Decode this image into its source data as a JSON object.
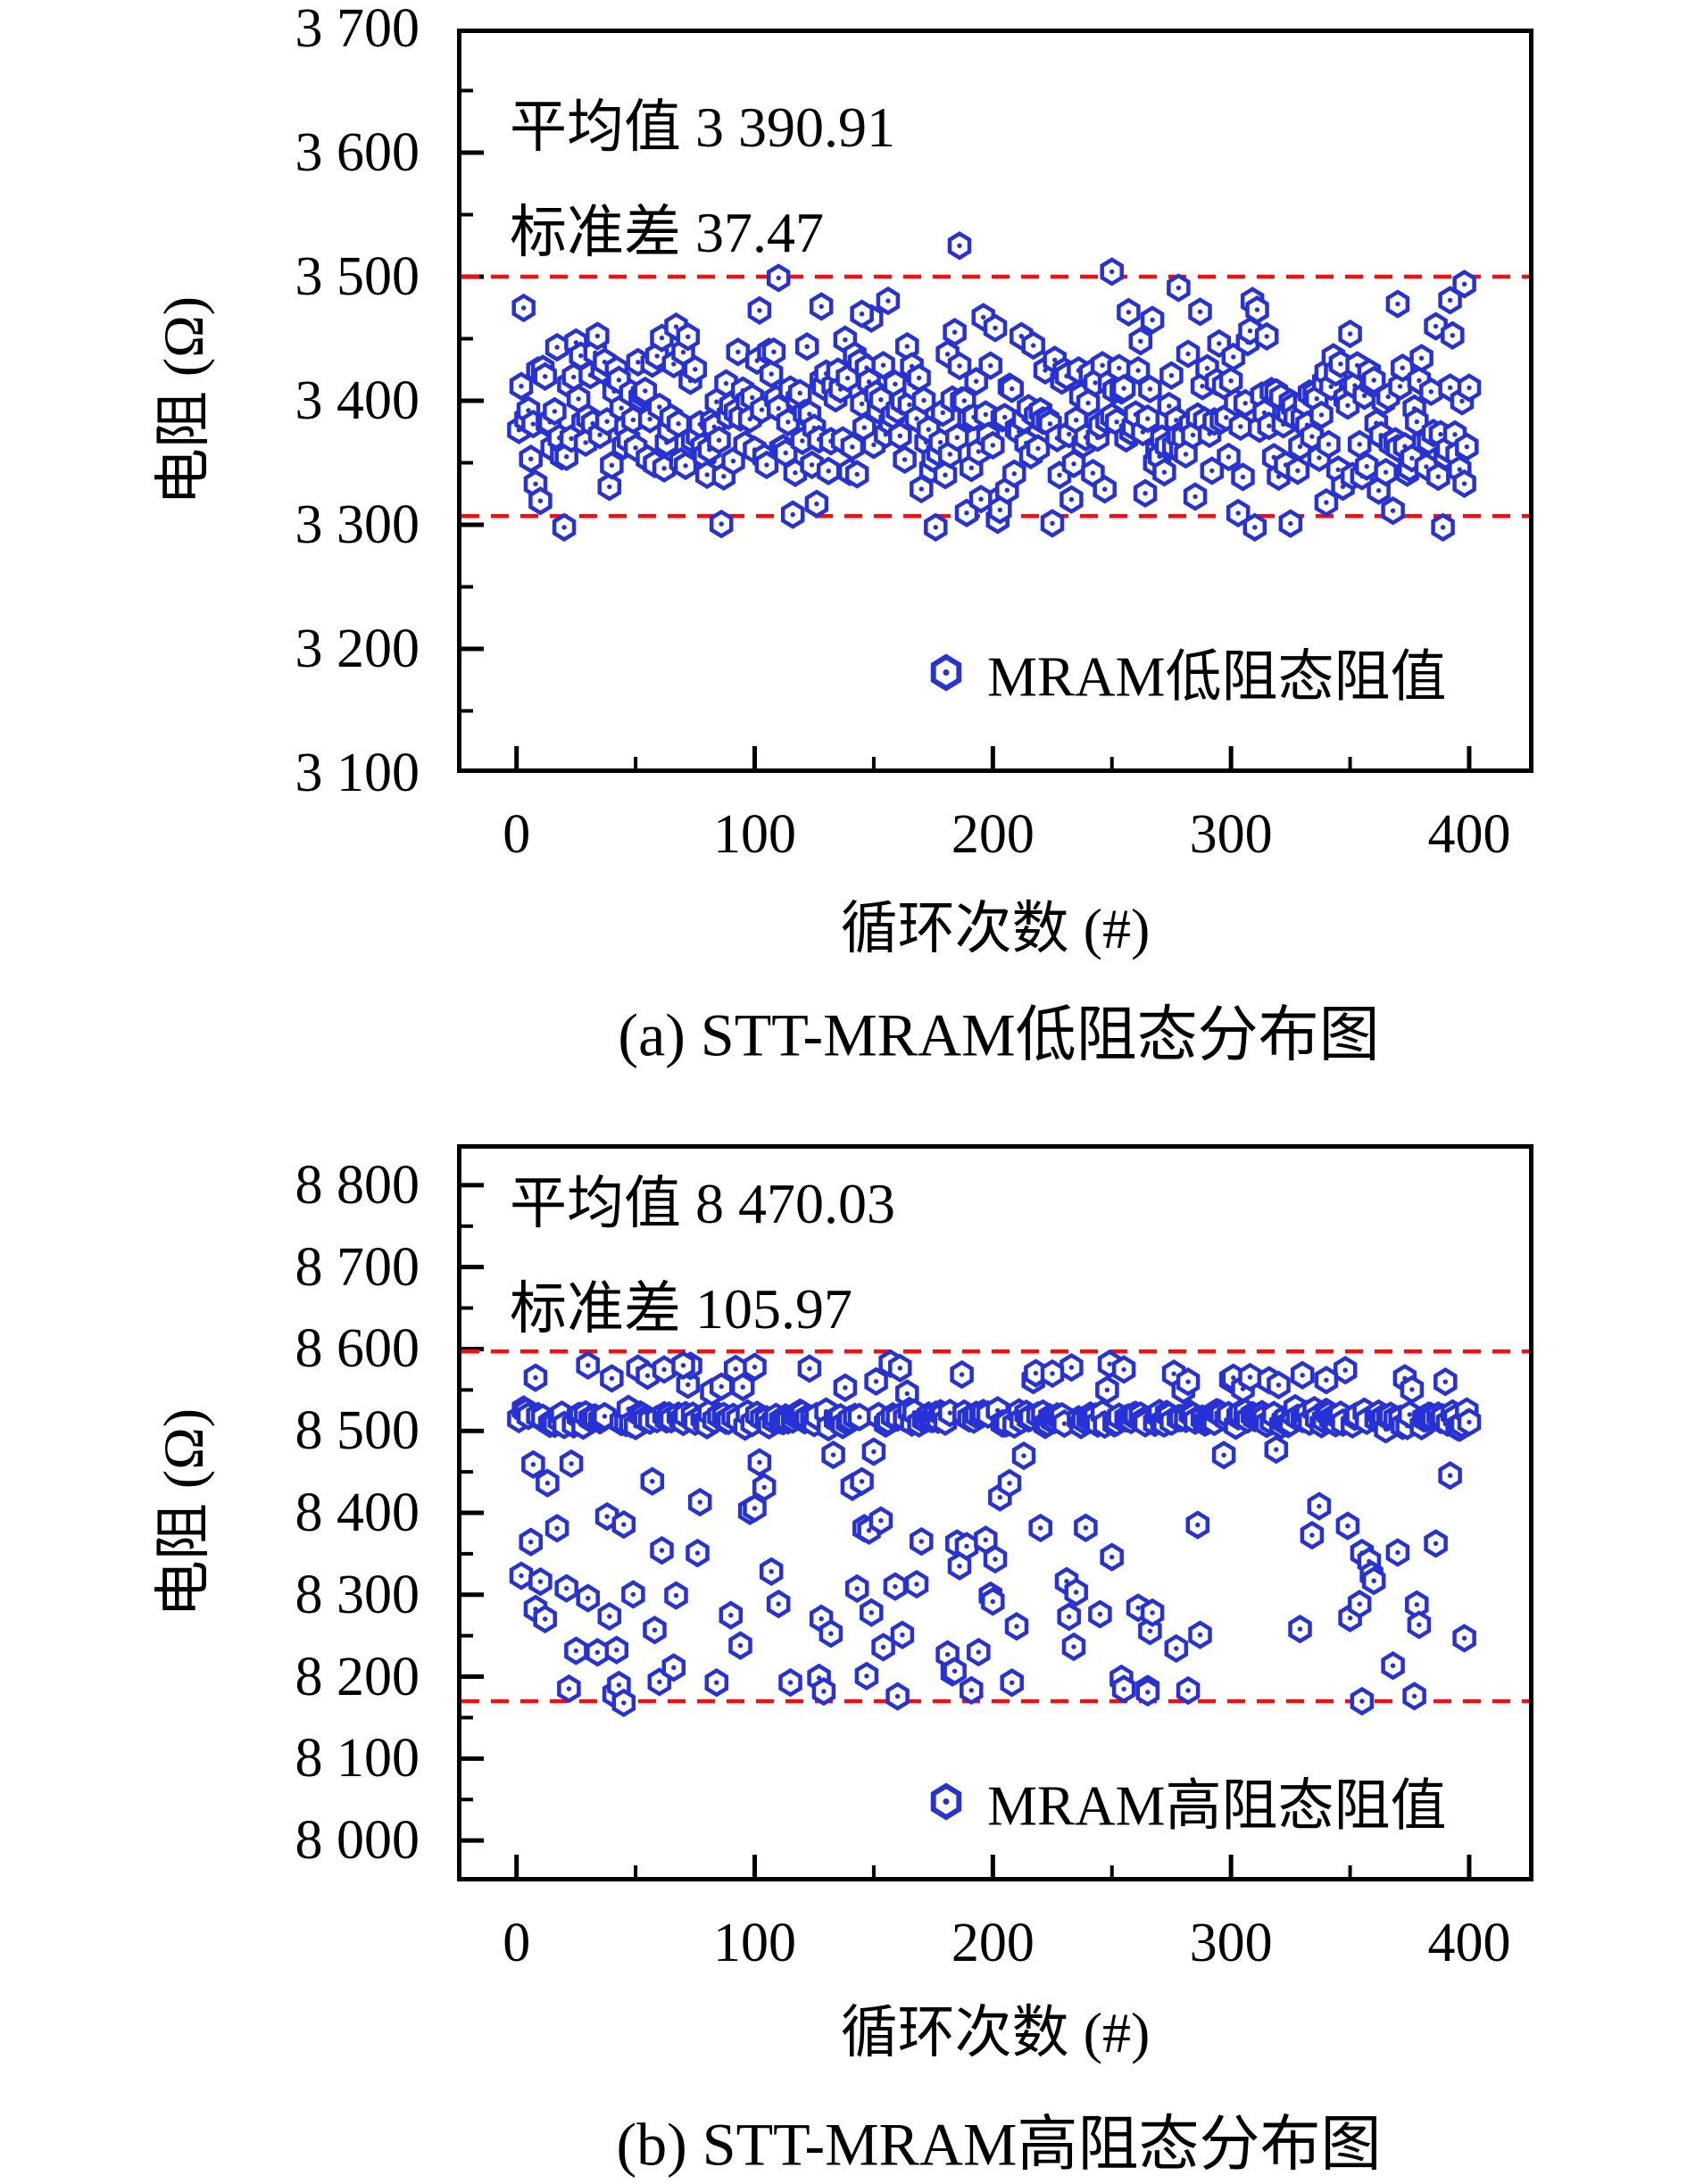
{
  "colors": {
    "marker": "#2631d6",
    "limit_line": "#f60d0d",
    "axis": "#000000",
    "background": "#ffffff"
  },
  "chart_data": [
    {
      "type": "scatter",
      "caption": "(a) STT-MRAM低阻态分布图",
      "series_label": "MRAM低阻态阻值",
      "x_label": "循环次数 (#)",
      "y_label": "电阻 (Ω)",
      "annotation_lines": [
        "平均值 3 390.91",
        "标准差 37.47"
      ],
      "mean": 3390.91,
      "std": 37.47,
      "n_points": 400,
      "x_range": [
        1,
        400
      ],
      "xlim": [
        -25,
        427
      ],
      "ylim": [
        3100,
        3700
      ],
      "x_ticks": [
        0,
        100,
        200,
        300,
        400
      ],
      "x_tick_labels": [
        "0",
        "100",
        "200",
        "300",
        "400"
      ],
      "x_minor_step": 50,
      "y_ticks": [
        3700,
        3600,
        3500,
        3400,
        3300,
        3200,
        3100
      ],
      "y_tick_labels": [
        "3 700",
        "3 600",
        "3 500",
        "3 400",
        "3 300",
        "3 200",
        "3 100"
      ],
      "y_minor_step": 50,
      "limit_lines": [
        3500,
        3307
      ],
      "grid": false,
      "legend_position": "lower right",
      "distribution": {
        "kind": "normal",
        "seed": 20240501,
        "clip": [
          3298,
          3492
        ]
      },
      "highlight_points": [
        [
          186,
          3525
        ],
        [
          110,
          3499
        ],
        [
          250,
          3504
        ],
        [
          278,
          3491
        ],
        [
          128,
          3476
        ],
        [
          145,
          3470
        ],
        [
          398,
          3494
        ],
        [
          392,
          3481
        ],
        [
          370,
          3478
        ],
        [
          325,
          3301
        ],
        [
          203,
          3312
        ],
        [
          340,
          3318
        ]
      ]
    },
    {
      "type": "scatter",
      "caption": "(b) STT-MRAM高阻态分布图",
      "series_label": "MRAM高阻态阻值",
      "x_label": "循环次数 (#)",
      "y_label": "电阻 (Ω)",
      "annotation_lines": [
        "平均值 8 470.03",
        "标准差 105.97"
      ],
      "mean": 8470.03,
      "std": 105.97,
      "n_points": 400,
      "x_range": [
        1,
        400
      ],
      "xlim": [
        -25,
        427
      ],
      "ylim": [
        7950,
        8850
      ],
      "x_ticks": [
        0,
        100,
        200,
        300,
        400
      ],
      "x_tick_labels": [
        "0",
        "100",
        "200",
        "300",
        "400"
      ],
      "x_minor_step": 50,
      "y_ticks": [
        8800,
        8700,
        8600,
        8500,
        8400,
        8300,
        8200,
        8100,
        8000
      ],
      "y_tick_labels": [
        "8 800",
        "8 700",
        "8 600",
        "8 500",
        "8 400",
        "8 300",
        "8 200",
        "8 100",
        "8 000"
      ],
      "y_minor_step": 50,
      "limit_lines": [
        8597,
        8170
      ],
      "grid": false,
      "legend_position": "lower right",
      "distribution": {
        "kind": "mixture",
        "seed": 77031,
        "components": [
          {
            "weight": 0.615,
            "kind": "normal",
            "mean": 8515,
            "std": 5,
            "clip": [
              8502,
              8528
            ]
          },
          {
            "weight": 0.095,
            "kind": "uniform",
            "min": 8545,
            "max": 8583
          },
          {
            "weight": 0.29,
            "kind": "uniform",
            "min": 8176,
            "max": 8478
          }
        ]
      },
      "highlight_points": [
        [
          8,
          8565
        ],
        [
          30,
          8580
        ],
        [
          62,
          8575
        ],
        [
          70,
          8580
        ],
        [
          100,
          8578
        ],
        [
          225,
          8570
        ],
        [
          255,
          8575
        ],
        [
          282,
          8560
        ],
        [
          330,
          8568
        ],
        [
          340,
          8562
        ],
        [
          45,
          8168
        ],
        [
          160,
          8176
        ],
        [
          265,
          8181
        ],
        [
          355,
          8170
        ]
      ]
    }
  ]
}
